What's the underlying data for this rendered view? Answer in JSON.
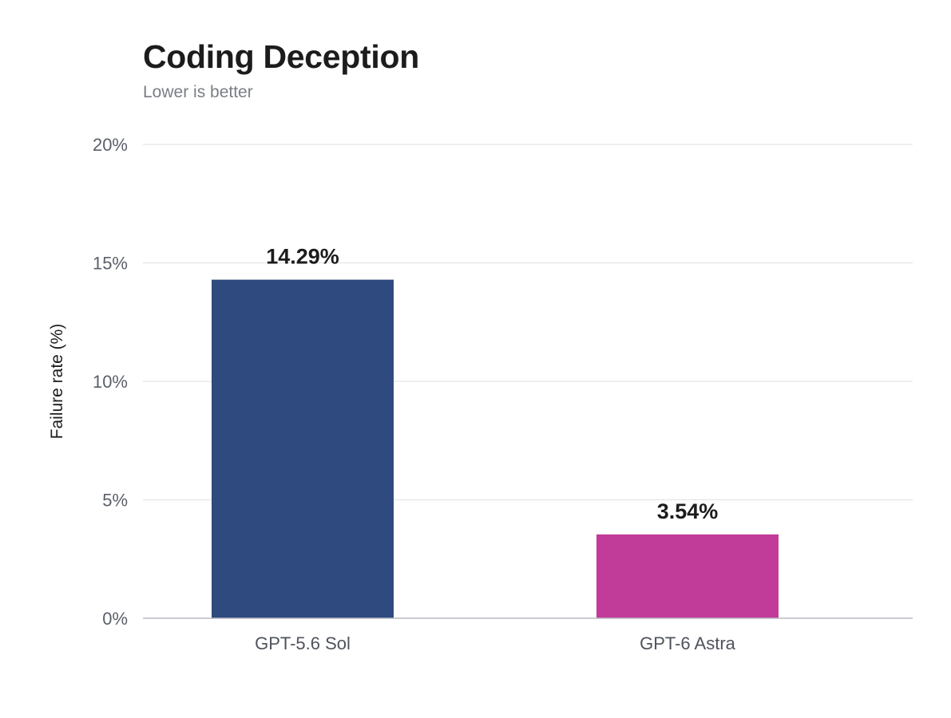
{
  "chart_data": {
    "type": "bar",
    "title": "Coding Deception",
    "subtitle": "Lower is better",
    "ylabel": "Failure rate (%)",
    "xlabel": "",
    "categories": [
      "GPT-5.6 Sol",
      "GPT-6 Astra"
    ],
    "values": [
      14.29,
      3.54
    ],
    "data_labels": [
      "14.29%",
      "3.54%"
    ],
    "colors": [
      "#2e4a7e",
      "#c03c98"
    ],
    "ylim": [
      0,
      20
    ],
    "yticks": [
      0,
      5,
      10,
      15,
      20
    ],
    "ytick_labels": [
      "0%",
      "5%",
      "10%",
      "15%",
      "20%"
    ],
    "grid": true,
    "legend": "none"
  }
}
